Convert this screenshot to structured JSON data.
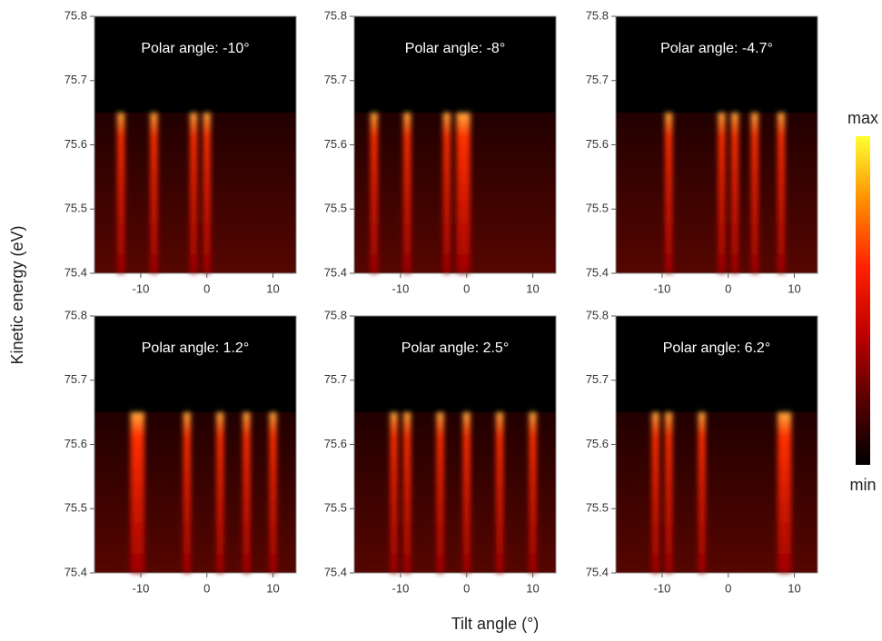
{
  "figure": {
    "x_label": "Tilt angle (°)",
    "y_label": "Kinetic energy (eV)",
    "colorbar": {
      "max_label": "max",
      "min_label": "min",
      "colors": [
        "#000000",
        "#5a0000",
        "#c00000",
        "#ff2000",
        "#ff8c00",
        "#ffff30"
      ]
    }
  },
  "chart_data": [
    {
      "type": "heatmap",
      "title": "Polar angle: -10°",
      "xlim": [
        -17,
        13.5
      ],
      "ylim": [
        75.4,
        75.8
      ],
      "xticks": [
        -10,
        0,
        10
      ],
      "yticks": [
        75.4,
        75.5,
        75.6,
        75.7,
        75.8
      ],
      "band_top": 75.65,
      "bands": [
        -13,
        -8,
        -2,
        0
      ]
    },
    {
      "type": "heatmap",
      "title": "Polar angle: -8°",
      "xlim": [
        -17,
        13.5
      ],
      "ylim": [
        75.4,
        75.8
      ],
      "xticks": [
        -10,
        0,
        10
      ],
      "yticks": [
        75.4,
        75.5,
        75.6,
        75.7,
        75.8
      ],
      "band_top": 75.65,
      "bands": [
        -14,
        -9,
        -3,
        -1,
        0
      ]
    },
    {
      "type": "heatmap",
      "title": "Polar angle: -4.7°",
      "xlim": [
        -17,
        13.5
      ],
      "ylim": [
        75.4,
        75.8
      ],
      "xticks": [
        -10,
        0,
        10
      ],
      "yticks": [
        75.4,
        75.5,
        75.6,
        75.7,
        75.8
      ],
      "band_top": 75.65,
      "bands": [
        -9,
        -1,
        1,
        4,
        8
      ]
    },
    {
      "type": "heatmap",
      "title": "Polar angle: 1.2°",
      "xlim": [
        -17,
        13.5
      ],
      "ylim": [
        75.4,
        75.8
      ],
      "xticks": [
        -10,
        0,
        10
      ],
      "yticks": [
        75.4,
        75.5,
        75.6,
        75.7,
        75.8
      ],
      "band_top": 75.65,
      "bands": [
        -11,
        -10,
        -3,
        2,
        6,
        10
      ]
    },
    {
      "type": "heatmap",
      "title": "Polar angle: 2.5°",
      "xlim": [
        -17,
        13.5
      ],
      "ylim": [
        75.4,
        75.8
      ],
      "xticks": [
        -10,
        0,
        10
      ],
      "yticks": [
        75.4,
        75.5,
        75.6,
        75.7,
        75.8
      ],
      "band_top": 75.65,
      "bands": [
        -11,
        -9,
        -4,
        0,
        5,
        10
      ]
    },
    {
      "type": "heatmap",
      "title": "Polar angle: 6.2°",
      "xlim": [
        -17,
        13.5
      ],
      "ylim": [
        75.4,
        75.8
      ],
      "xticks": [
        -10,
        0,
        10
      ],
      "yticks": [
        75.4,
        75.5,
        75.6,
        75.7,
        75.8
      ],
      "band_top": 75.65,
      "bands": [
        -11,
        -9,
        -4,
        8,
        9
      ]
    }
  ]
}
